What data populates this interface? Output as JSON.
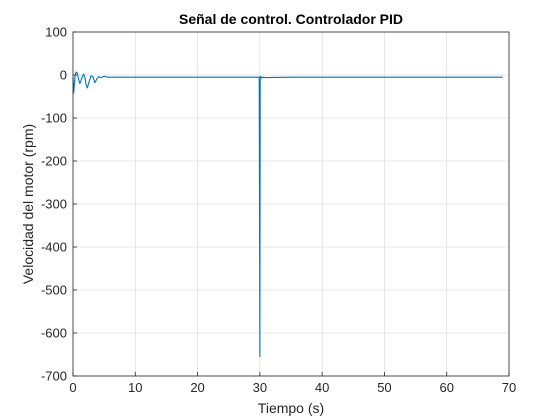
{
  "chart_data": {
    "type": "line",
    "title": "Señal de control. Controlador PID",
    "xlabel": "Tiempo (s)",
    "ylabel": "Velocidad del motor (rpm)",
    "xlim": [
      0,
      70
    ],
    "ylim": [
      -700,
      100
    ],
    "xticks": [
      0,
      10,
      20,
      30,
      40,
      50,
      60,
      70
    ],
    "yticks": [
      100,
      0,
      -100,
      -200,
      -300,
      -400,
      -500,
      -600,
      -700
    ],
    "grid": true,
    "line_color": "#0072BD",
    "series": [
      {
        "x": [
          0,
          0.1,
          0.2,
          0.35,
          0.5,
          0.7,
          0.9,
          1.1,
          1.3,
          1.5,
          1.7,
          1.9,
          2.1,
          2.3,
          2.6,
          2.9,
          3.2,
          3.5,
          3.8,
          4.1,
          4.5,
          5.0,
          5.5,
          6.0,
          8,
          10,
          15,
          20,
          25,
          29.9,
          30.0,
          30.05,
          30.1,
          30.3,
          30.6,
          31,
          35,
          40,
          45,
          50,
          55,
          60,
          65,
          69
        ],
        "y": [
          -5,
          -42,
          -25,
          0,
          7,
          4,
          -10,
          -20,
          -12,
          -3,
          2,
          -5,
          -22,
          -30,
          -15,
          -2,
          -4,
          -18,
          -10,
          -4,
          -6,
          -3,
          -5,
          -5,
          -5,
          -5,
          -5,
          -5,
          -5,
          -5,
          -655,
          -8,
          -3,
          -7,
          -5,
          -6,
          -5,
          -5,
          -5,
          -5,
          -5,
          -5,
          -5,
          -5
        ]
      }
    ]
  }
}
